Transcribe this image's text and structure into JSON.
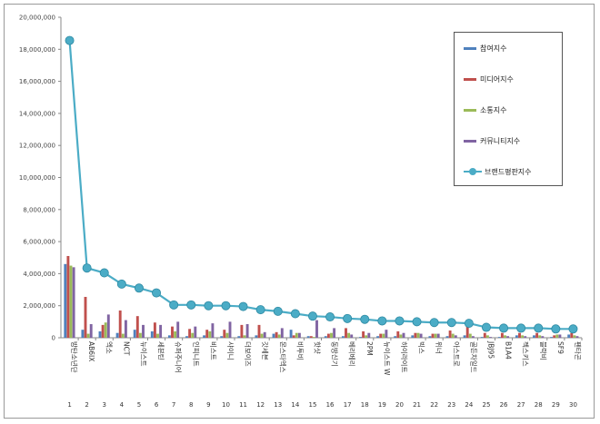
{
  "chart_data": {
    "type": "bar",
    "ylim": [
      0,
      20000000
    ],
    "y_ticks": [
      "0",
      "2,000,000",
      "4,000,000",
      "6,000,000",
      "8,000,000",
      "10,000,000",
      "12,000,000",
      "14,000,000",
      "16,000,000",
      "18,000,000",
      "20,000,000"
    ],
    "y_tick_values": [
      0,
      2000000,
      4000000,
      6000000,
      8000000,
      10000000,
      12000000,
      14000000,
      16000000,
      18000000,
      20000000
    ],
    "grid": false,
    "legend_position": "top-right",
    "categories": [
      "방탄소년단",
      "AB6IX",
      "엑소",
      "NCT",
      "뉴이스트",
      "세븐틴",
      "슈퍼주니어",
      "인피니트",
      "비스트",
      "샤이니",
      "더보이즈",
      "갓세븐",
      "몬스타엑스",
      "비투비",
      "핫샷",
      "동방신기",
      "베리베리",
      "2PM",
      "뉴이스트 W",
      "하이라이트",
      "빅스",
      "위너",
      "아스트로",
      "골든차일드",
      "JBJ95",
      "B1A4",
      "젝스키스",
      "블락비",
      "SF9",
      "펜타곤"
    ],
    "category_numbers": [
      "1",
      "2",
      "3",
      "4",
      "5",
      "6",
      "7",
      "8",
      "9",
      "10",
      "11",
      "12",
      "13",
      "14",
      "15",
      "16",
      "17",
      "18",
      "19",
      "20",
      "21",
      "22",
      "23",
      "24",
      "25",
      "26",
      "27",
      "28",
      "29",
      "30"
    ],
    "series": [
      {
        "name": "참여지수",
        "color": "#4f81bd",
        "kind": "bar",
        "values": [
          4600000,
          500000,
          400000,
          300000,
          500000,
          400000,
          150000,
          100000,
          150000,
          100000,
          100000,
          150000,
          250000,
          500000,
          100000,
          100000,
          100000,
          50000,
          100000,
          100000,
          150000,
          100000,
          100000,
          150000,
          50000,
          50000,
          150000,
          150000,
          50000,
          200000
        ]
      },
      {
        "name": "미디어지수",
        "color": "#c0504d",
        "kind": "bar",
        "values": [
          5100000,
          2550000,
          800000,
          1700000,
          1350000,
          950000,
          700000,
          550000,
          500000,
          500000,
          800000,
          800000,
          350000,
          150000,
          100000,
          250000,
          600000,
          400000,
          250000,
          400000,
          300000,
          250000,
          450000,
          800000,
          300000,
          300000,
          300000,
          300000,
          150000,
          300000
        ]
      },
      {
        "name": "소통지수",
        "color": "#9bbb59",
        "kind": "bar",
        "values": [
          4500000,
          250000,
          950000,
          250000,
          300000,
          250000,
          400000,
          300000,
          400000,
          300000,
          150000,
          250000,
          200000,
          300000,
          50000,
          300000,
          300000,
          150000,
          250000,
          200000,
          300000,
          250000,
          250000,
          250000,
          150000,
          150000,
          150000,
          150000,
          200000,
          150000
        ]
      },
      {
        "name": "커뮤니티지수",
        "color": "#8064a2",
        "kind": "bar",
        "values": [
          4400000,
          850000,
          1450000,
          1100000,
          800000,
          800000,
          1000000,
          700000,
          900000,
          1000000,
          850000,
          350000,
          600000,
          300000,
          1100000,
          600000,
          200000,
          300000,
          500000,
          300000,
          250000,
          250000,
          150000,
          100000,
          50000,
          100000,
          100000,
          100000,
          200000,
          100000
        ]
      },
      {
        "name": "브랜드평판지수",
        "color": "#4bacc6",
        "kind": "line",
        "values": [
          18550000,
          4350000,
          4050000,
          3350000,
          3100000,
          2800000,
          2050000,
          2050000,
          2000000,
          2000000,
          1950000,
          1750000,
          1650000,
          1500000,
          1350000,
          1300000,
          1200000,
          1150000,
          1050000,
          1050000,
          1000000,
          950000,
          950000,
          900000,
          650000,
          600000,
          600000,
          600000,
          550000,
          550000
        ]
      }
    ]
  }
}
